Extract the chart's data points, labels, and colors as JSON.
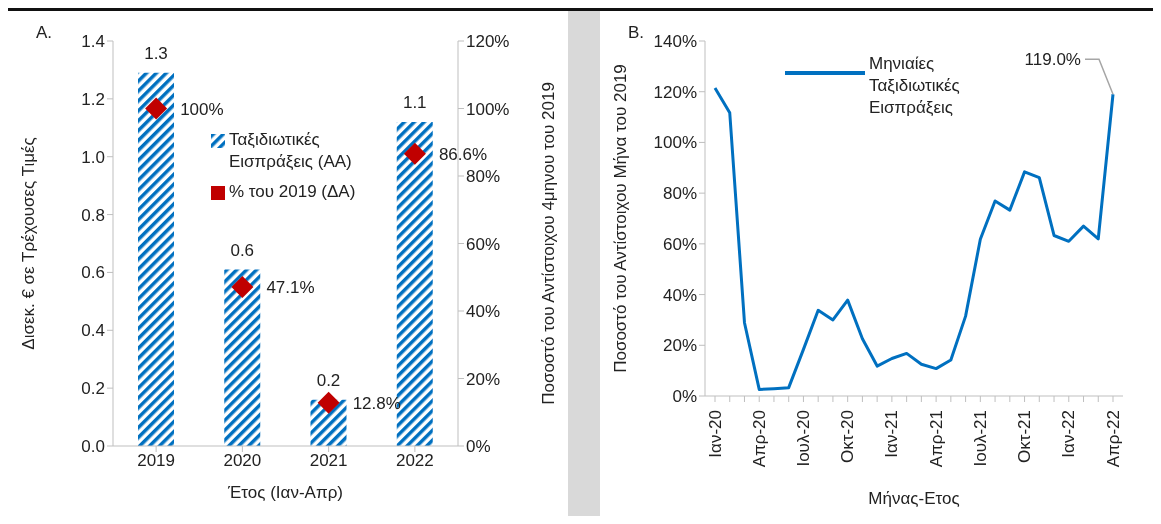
{
  "chart_data": [
    {
      "type": "bar",
      "title": "A.",
      "xlabel": "Έτος (Ιαν-Απρ)",
      "ylabel": "Δισεκ. € σε Τρέχουσες Τιμές",
      "y2label": "Ποσοστό του Αντίστοιχου 4μηνου του 2019",
      "categories": [
        "2019",
        "2020",
        "2021",
        "2022"
      ],
      "series": [
        {
          "name": "Ταξιδιωτικές Εισπράξεις (ΑΑ)",
          "color": "#0070c0",
          "values": [
            1.29,
            0.61,
            0.16,
            1.12
          ],
          "value_labels": [
            "1.3",
            "0.6",
            "0.2",
            "1.1"
          ]
        },
        {
          "name": "% του 2019 (ΔΑ)",
          "type": "scatter",
          "axis": "y2",
          "color": "#c00000",
          "values": [
            100,
            47.1,
            12.8,
            86.6
          ],
          "value_labels": [
            "100%",
            "47.1%",
            "12.8%",
            "86.6%"
          ]
        }
      ],
      "ylim": [
        0,
        1.4
      ],
      "yticks": [
        {
          "value": 0,
          "label": "0.0"
        },
        0.2,
        0.4,
        0.6,
        0.8,
        {
          "value": 1,
          "label": "1.0"
        },
        1.2,
        1.4
      ],
      "y2lim": [
        0,
        120
      ],
      "y2ticks": [
        {
          "value": 0,
          "label": "0%"
        },
        {
          "value": 20,
          "label": "20%"
        },
        {
          "value": 40,
          "label": "40%"
        },
        {
          "value": 60,
          "label": "60%"
        },
        {
          "value": 80,
          "label": "80%"
        },
        {
          "value": 100,
          "label": "100%"
        },
        {
          "value": 120,
          "label": "120%"
        }
      ],
      "marker": "diamond",
      "legend": "top"
    },
    {
      "type": "line",
      "title": "B.",
      "xlabel": "Μήνας-Ετος",
      "ylabel": "Ποσοστό του Αντίστοιχου Μήνα του 2019",
      "categories": [
        "Ιαν-20",
        null,
        null,
        "Απρ-20",
        null,
        null,
        "Ιουλ-20",
        null,
        null,
        "Οκτ-20",
        null,
        null,
        "Ιαν-21",
        null,
        null,
        "Απρ-21",
        null,
        null,
        "Ιουλ-21",
        null,
        null,
        "Οκτ-21",
        null,
        null,
        "Ιαν-22",
        null,
        null,
        "Απρ-22"
      ],
      "series": [
        {
          "name": "Μηνιαίες Ταξιδιωτικές Εισπράξεις",
          "color": "#0070c0",
          "values": [
            121.5,
            111.7,
            28.9,
            2.6,
            2.9,
            3.3,
            18.4,
            33.8,
            30.0,
            37.8,
            22.6,
            11.8,
            14.8,
            16.8,
            12.5,
            10.8,
            14.2,
            31.5,
            61.8,
            76.9,
            73.3,
            88.4,
            86.1,
            63.3,
            61.0,
            67.0,
            62.0,
            119.0
          ]
        }
      ],
      "ylim": [
        0,
        140
      ],
      "yticks": [
        {
          "value": 0,
          "label": "0%"
        },
        {
          "value": 20,
          "label": "20%"
        },
        {
          "value": 40,
          "label": "40%"
        },
        {
          "value": 60,
          "label": "60%"
        },
        {
          "value": 80,
          "label": "80%"
        },
        {
          "value": 100,
          "label": "100%"
        },
        {
          "value": 120,
          "label": "120%"
        },
        {
          "value": 140,
          "label": "140%"
        }
      ],
      "annotations": [
        {
          "text": "119.0%",
          "x": "Απρ-22",
          "y": 119.0
        }
      ],
      "legend": "top left",
      "line_style": "solid"
    }
  ]
}
